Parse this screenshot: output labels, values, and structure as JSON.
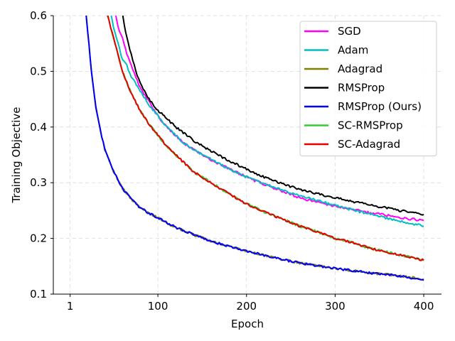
{
  "chart_data": {
    "type": "line",
    "xlabel": "Epoch",
    "ylabel": "Training Objective",
    "xlim": [
      -18,
      420
    ],
    "ylim": [
      0.1,
      0.6
    ],
    "xticks": [
      1,
      100,
      200,
      300,
      400
    ],
    "yticks": [
      0.1,
      0.2,
      0.3,
      0.4,
      0.5,
      0.6
    ],
    "tick_labels_x": [
      "1",
      "100",
      "200",
      "300",
      "400"
    ],
    "tick_labels_y": [
      "0.1",
      "0.2",
      "0.3",
      "0.4",
      "0.5",
      "0.6"
    ],
    "grid": true,
    "legend_position": "top-right",
    "series": [
      {
        "name": "SGD",
        "color": "#ff00ff",
        "x": [
          50,
          55,
          60,
          65,
          70,
          75,
          80,
          90,
          100,
          110,
          120,
          130,
          140,
          150,
          160,
          170,
          180,
          190,
          200,
          220,
          240,
          260,
          280,
          300,
          320,
          340,
          360,
          380,
          400
        ],
        "y": [
          0.62,
          0.58,
          0.56,
          0.53,
          0.51,
          0.49,
          0.47,
          0.445,
          0.42,
          0.4,
          0.385,
          0.37,
          0.36,
          0.35,
          0.34,
          0.333,
          0.325,
          0.318,
          0.31,
          0.297,
          0.285,
          0.273,
          0.265,
          0.258,
          0.252,
          0.246,
          0.241,
          0.236,
          0.232
        ]
      },
      {
        "name": "Adam",
        "color": "#00bfbf",
        "x": [
          45,
          50,
          55,
          60,
          65,
          70,
          80,
          90,
          100,
          110,
          120,
          130,
          140,
          150,
          160,
          170,
          180,
          190,
          200,
          220,
          240,
          260,
          280,
          300,
          320,
          340,
          360,
          380,
          400
        ],
        "y": [
          0.62,
          0.58,
          0.55,
          0.52,
          0.51,
          0.49,
          0.465,
          0.44,
          0.42,
          0.4,
          0.385,
          0.37,
          0.36,
          0.35,
          0.342,
          0.333,
          0.325,
          0.318,
          0.31,
          0.298,
          0.287,
          0.277,
          0.268,
          0.259,
          0.251,
          0.243,
          0.236,
          0.229,
          0.222
        ]
      },
      {
        "name": "Adagrad",
        "color": "#808000",
        "x": [
          18,
          25,
          30,
          35,
          40,
          45,
          50,
          60,
          70,
          80,
          90,
          100,
          110,
          120,
          140,
          160,
          180,
          200,
          220,
          240,
          260,
          280,
          300,
          320,
          340,
          360,
          380,
          400
        ],
        "y": [
          0.62,
          0.5,
          0.435,
          0.395,
          0.36,
          0.34,
          0.32,
          0.29,
          0.27,
          0.255,
          0.245,
          0.237,
          0.228,
          0.22,
          0.207,
          0.195,
          0.186,
          0.177,
          0.17,
          0.162,
          0.156,
          0.151,
          0.146,
          0.142,
          0.138,
          0.135,
          0.131,
          0.127
        ]
      },
      {
        "name": "RMSProp",
        "color": "#000000",
        "x": [
          58,
          65,
          70,
          75,
          80,
          85,
          90,
          100,
          110,
          120,
          130,
          140,
          150,
          160,
          170,
          180,
          190,
          200,
          220,
          240,
          260,
          280,
          300,
          320,
          340,
          360,
          380,
          400
        ],
        "y": [
          0.62,
          0.56,
          0.53,
          0.5,
          0.48,
          0.465,
          0.45,
          0.43,
          0.415,
          0.4,
          0.388,
          0.376,
          0.366,
          0.357,
          0.348,
          0.34,
          0.332,
          0.324,
          0.31,
          0.298,
          0.288,
          0.28,
          0.273,
          0.266,
          0.26,
          0.254,
          0.248,
          0.243
        ]
      },
      {
        "name": "RMSProp (Ours)",
        "color": "#0000ff",
        "x": [
          18,
          25,
          30,
          35,
          40,
          45,
          50,
          60,
          70,
          80,
          90,
          100,
          110,
          120,
          140,
          160,
          180,
          200,
          220,
          240,
          260,
          280,
          300,
          320,
          340,
          360,
          380,
          400
        ],
        "y": [
          0.62,
          0.5,
          0.435,
          0.395,
          0.36,
          0.34,
          0.32,
          0.29,
          0.27,
          0.255,
          0.245,
          0.237,
          0.228,
          0.22,
          0.207,
          0.195,
          0.186,
          0.177,
          0.17,
          0.162,
          0.156,
          0.151,
          0.146,
          0.142,
          0.138,
          0.135,
          0.131,
          0.125
        ]
      },
      {
        "name": "SC-RMSProp",
        "color": "#33cc33",
        "x": [
          40,
          45,
          50,
          55,
          60,
          65,
          70,
          80,
          90,
          100,
          110,
          120,
          130,
          140,
          150,
          160,
          180,
          200,
          220,
          240,
          260,
          280,
          300,
          320,
          340,
          360,
          380,
          400
        ],
        "y": [
          0.62,
          0.59,
          0.56,
          0.53,
          0.5,
          0.48,
          0.46,
          0.43,
          0.405,
          0.385,
          0.365,
          0.35,
          0.335,
          0.32,
          0.31,
          0.3,
          0.28,
          0.262,
          0.248,
          0.235,
          0.222,
          0.212,
          0.2,
          0.192,
          0.182,
          0.175,
          0.168,
          0.161
        ]
      },
      {
        "name": "SC-Adagrad",
        "color": "#e60000",
        "x": [
          40,
          45,
          50,
          55,
          60,
          65,
          70,
          80,
          90,
          100,
          110,
          120,
          130,
          140,
          150,
          160,
          180,
          200,
          220,
          240,
          260,
          280,
          300,
          320,
          340,
          360,
          380,
          400
        ],
        "y": [
          0.62,
          0.59,
          0.56,
          0.53,
          0.5,
          0.48,
          0.46,
          0.43,
          0.405,
          0.385,
          0.365,
          0.35,
          0.335,
          0.32,
          0.31,
          0.3,
          0.28,
          0.262,
          0.248,
          0.235,
          0.222,
          0.212,
          0.2,
          0.192,
          0.182,
          0.175,
          0.168,
          0.161
        ]
      }
    ]
  }
}
